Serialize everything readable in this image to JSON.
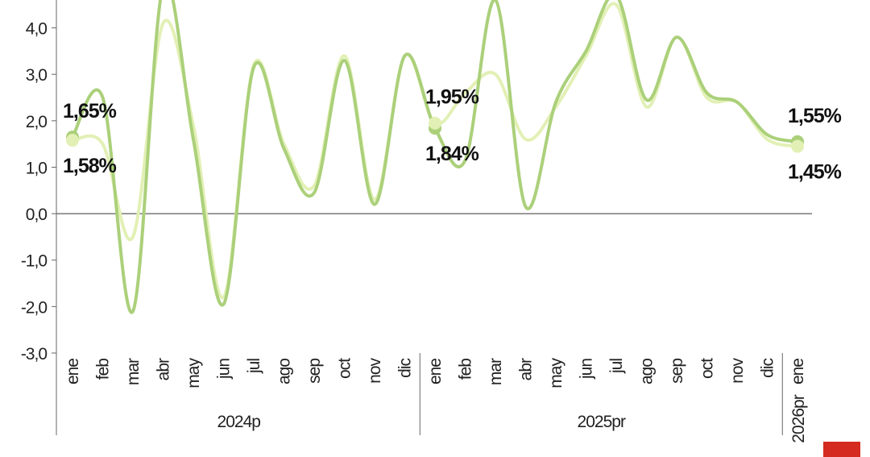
{
  "chart_data": {
    "type": "line",
    "categories": [
      "ene",
      "feb",
      "mar",
      "abr",
      "may",
      "jun",
      "jul",
      "ago",
      "sep",
      "oct",
      "nov",
      "dic",
      "ene",
      "feb",
      "mar",
      "abr",
      "may",
      "jun",
      "jul",
      "ago",
      "sep",
      "oct",
      "nov",
      "dic",
      "ene"
    ],
    "groups": [
      {
        "label": "2024p",
        "span": [
          0,
          11
        ]
      },
      {
        "label": "2025pr",
        "span": [
          12,
          23
        ]
      },
      {
        "label": "2026pr",
        "span": [
          24,
          24
        ]
      }
    ],
    "series": [
      {
        "color": "#abd07a",
        "values": [
          1.65,
          2.5,
          -2.1,
          4.9,
          1.6,
          -1.95,
          3.15,
          1.4,
          0.45,
          3.3,
          0.2,
          3.4,
          1.84,
          1.15,
          4.6,
          0.15,
          2.4,
          3.5,
          4.7,
          2.45,
          3.8,
          2.6,
          2.4,
          1.7,
          1.55
        ],
        "value_labels": [
          "1,65%",
          null,
          null,
          null,
          null,
          null,
          null,
          null,
          null,
          null,
          null,
          null,
          "1,84%",
          null,
          null,
          null,
          null,
          null,
          null,
          null,
          null,
          null,
          null,
          null,
          "1,55%"
        ]
      },
      {
        "color": "#e2f0b5",
        "values": [
          1.58,
          1.5,
          -0.5,
          4.1,
          1.9,
          -1.8,
          3.2,
          1.5,
          0.6,
          3.4,
          0.3,
          3.4,
          1.95,
          2.6,
          3.0,
          1.6,
          2.3,
          3.4,
          4.5,
          2.3,
          3.8,
          2.5,
          2.4,
          1.6,
          1.45
        ],
        "value_labels": [
          "1,58%",
          null,
          null,
          null,
          null,
          null,
          null,
          null,
          null,
          null,
          null,
          null,
          "1,95%",
          null,
          null,
          null,
          null,
          null,
          null,
          null,
          null,
          null,
          null,
          null,
          "1,45%"
        ]
      }
    ],
    "ylim": [
      -3,
      4.6
    ],
    "yticks": [
      {
        "value": -3,
        "label": "-3,0"
      },
      {
        "value": -2,
        "label": "-2,0"
      },
      {
        "value": -1,
        "label": "-1,0"
      },
      {
        "value": 0,
        "label": "0,0"
      },
      {
        "value": 1,
        "label": "1,0"
      },
      {
        "value": 2,
        "label": "2,0"
      },
      {
        "value": 3,
        "label": "3,0"
      },
      {
        "value": 4,
        "label": "4,0"
      }
    ],
    "zero_line": true
  }
}
